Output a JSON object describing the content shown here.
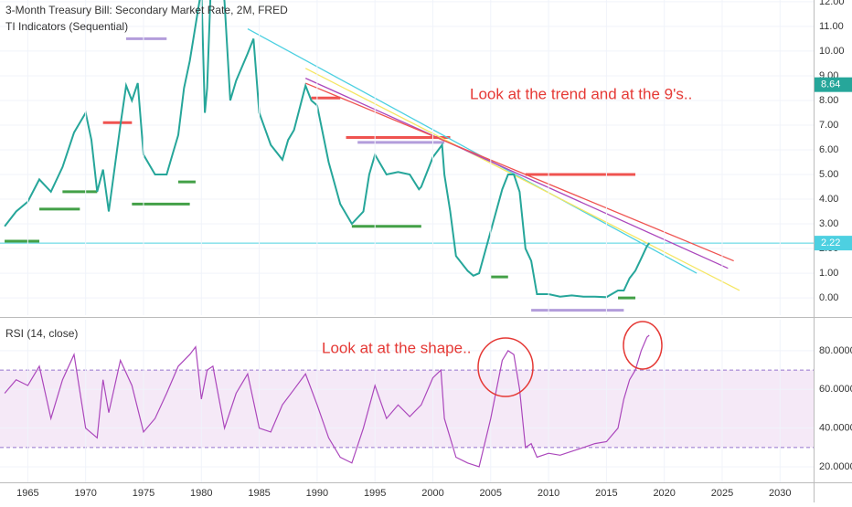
{
  "chart_data": [
    {
      "type": "line",
      "title": "3-Month Treasury Bill: Secondary Market Rate, 2M, FRED",
      "subtitle": "TI Indicators (Sequential)",
      "annotation": "Look at the trend and at the 9's..",
      "color": "#26a69a",
      "x": [
        1963,
        1964,
        1965,
        1966,
        1967,
        1968,
        1969,
        1970,
        1970.5,
        1971,
        1971.5,
        1972,
        1973,
        1973.5,
        1974,
        1974.5,
        1975,
        1976,
        1977,
        1977.5,
        1978,
        1978.5,
        1979,
        1980,
        1980.3,
        1980.5,
        1981,
        1981.5,
        1982,
        1982.5,
        1983,
        1984,
        1984.5,
        1985,
        1986,
        1987,
        1987.5,
        1988,
        1989,
        1989.5,
        1990,
        1991,
        1992,
        1993,
        1994,
        1994.5,
        1995,
        1996,
        1997,
        1998,
        1998.8,
        1999,
        2000,
        2000.8,
        2001,
        2001.5,
        2002,
        2003,
        2003.5,
        2004,
        2005,
        2006,
        2006.5,
        2007,
        2007.5,
        2008,
        2008.5,
        2009,
        2010,
        2011,
        2012,
        2013,
        2014,
        2015,
        2016,
        2016.5,
        2017,
        2017.5,
        2018,
        2018.5,
        2018.7
      ],
      "values": [
        2.9,
        3.5,
        3.9,
        4.8,
        4.3,
        5.3,
        6.7,
        7.5,
        6.4,
        4.3,
        5.2,
        3.5,
        7.0,
        8.6,
        8.0,
        8.7,
        5.8,
        5.0,
        5.0,
        5.8,
        6.6,
        8.5,
        9.6,
        12.5,
        7.5,
        8.5,
        15,
        14.5,
        12.0,
        8.0,
        8.8,
        9.9,
        10.5,
        7.5,
        6.2,
        5.6,
        6.4,
        6.8,
        8.6,
        8.0,
        7.8,
        5.5,
        3.8,
        3.0,
        3.5,
        5.0,
        5.8,
        5.0,
        5.1,
        5.0,
        4.4,
        4.5,
        5.7,
        6.2,
        5.0,
        3.5,
        1.7,
        1.1,
        0.9,
        1.0,
        2.7,
        4.4,
        5.0,
        5.0,
        4.3,
        2.0,
        1.5,
        0.15,
        0.15,
        0.05,
        0.1,
        0.05,
        0.05,
        0.03,
        0.3,
        0.3,
        0.8,
        1.1,
        1.6,
        2.1,
        2.22
      ],
      "xlim": [
        1962.6,
        2032.9
      ],
      "ylim": [
        -0.7,
        12.07
      ],
      "yticks": [
        {
          "value": 0,
          "label": "0.00"
        },
        {
          "value": 1,
          "label": "1.00"
        },
        {
          "value": 2,
          "label": "2.00"
        },
        {
          "value": 3,
          "label": "3.00"
        },
        {
          "value": 4,
          "label": "4.00"
        },
        {
          "value": 5,
          "label": "5.00"
        },
        {
          "value": 6,
          "label": "6.00"
        },
        {
          "value": 7,
          "label": "7.00"
        },
        {
          "value": 8,
          "label": "8.00"
        },
        {
          "value": 9,
          "label": "9.00"
        },
        {
          "value": 10,
          "label": "10.00"
        },
        {
          "value": 11,
          "label": "11.00"
        },
        {
          "value": 12,
          "label": "12.00"
        }
      ],
      "grid": true,
      "price_tags": [
        {
          "value": 2.22,
          "color": "#4dd0e1"
        },
        {
          "value": 8.64,
          "color": "#26a69a"
        }
      ],
      "trendlines": [
        {
          "x": [
            1984,
            2022.8
          ],
          "values": [
            10.9,
            1.0
          ],
          "color": "#4dd0e1"
        },
        {
          "x": [
            1989,
            2026.5
          ],
          "values": [
            9.3,
            0.3
          ],
          "color": "#f5e663"
        },
        {
          "x": [
            1989,
            2025.5
          ],
          "values": [
            8.9,
            1.2
          ],
          "color": "#ab47bc"
        },
        {
          "x": [
            1989,
            2026
          ],
          "values": [
            8.7,
            1.5
          ],
          "color": "#ef5350"
        }
      ],
      "levels": [
        {
          "x": [
            1971.5,
            1974
          ],
          "value": 7.1,
          "color": "#ef5350"
        },
        {
          "x": [
            1989.5,
            1992
          ],
          "value": 8.1,
          "color": "#ef5350"
        },
        {
          "x": [
            1992.5,
            2001.5
          ],
          "value": 6.5,
          "color": "#ef5350"
        },
        {
          "x": [
            2008,
            2017.5
          ],
          "value": 5.0,
          "color": "#ef5350"
        },
        {
          "x": [
            1963,
            1966
          ],
          "value": 2.3,
          "color": "#43a047"
        },
        {
          "x": [
            1966,
            1969.5
          ],
          "value": 3.6,
          "color": "#43a047"
        },
        {
          "x": [
            1968,
            1971
          ],
          "value": 4.3,
          "color": "#43a047"
        },
        {
          "x": [
            1974,
            1979
          ],
          "value": 3.8,
          "color": "#43a047"
        },
        {
          "x": [
            1978,
            1979.5
          ],
          "value": 4.7,
          "color": "#43a047"
        },
        {
          "x": [
            1993,
            1999
          ],
          "value": 2.9,
          "color": "#43a047"
        },
        {
          "x": [
            2005,
            2006.5
          ],
          "value": 0.85,
          "color": "#43a047"
        },
        {
          "x": [
            2016,
            2017.5
          ],
          "value": 0.0,
          "color": "#43a047"
        },
        {
          "x": [
            1973.5,
            1977
          ],
          "value": 10.5,
          "color": "#b39ddb"
        },
        {
          "x": [
            1993.5,
            2001
          ],
          "value": 6.3,
          "color": "#b39ddb"
        },
        {
          "x": [
            2008.5,
            2016.5
          ],
          "value": -0.5,
          "color": "#b39ddb"
        }
      ]
    },
    {
      "type": "line",
      "title": "RSI (14, close)",
      "annotation": "Look at at the shape..",
      "color": "#ab47bc",
      "x": [
        1963,
        1964,
        1965,
        1966,
        1967,
        1968,
        1969,
        1970,
        1971,
        1971.5,
        1972,
        1973,
        1974,
        1975,
        1976,
        1977,
        1978,
        1979,
        1979.5,
        1980,
        1980.5,
        1981,
        1982,
        1983,
        1984,
        1985,
        1986,
        1987,
        1988,
        1989,
        1990,
        1991,
        1992,
        1993,
        1994,
        1995,
        1996,
        1997,
        1998,
        1999,
        2000,
        2000.7,
        2001,
        2002,
        2003,
        2004,
        2005,
        2006,
        2006.5,
        2007,
        2007.5,
        2008,
        2008.5,
        2009,
        2010,
        2011,
        2012,
        2013,
        2014,
        2015,
        2016,
        2016.5,
        2017,
        2017.5,
        2018,
        2018.5,
        2018.7
      ],
      "values": [
        58,
        65,
        62,
        72,
        45,
        65,
        78,
        40,
        35,
        65,
        48,
        75,
        62,
        38,
        45,
        58,
        72,
        78,
        82,
        55,
        70,
        72,
        40,
        58,
        68,
        40,
        38,
        52,
        60,
        68,
        52,
        35,
        25,
        22,
        40,
        62,
        45,
        52,
        46,
        52,
        66,
        70,
        45,
        25,
        22,
        20,
        45,
        75,
        80,
        78,
        60,
        30,
        32,
        25,
        27,
        26,
        28,
        30,
        32,
        33,
        40,
        55,
        65,
        70,
        80,
        87,
        88
      ],
      "xlim": [
        1962.6,
        2032.9
      ],
      "ylim": [
        12,
        96
      ],
      "yticks": [
        {
          "value": 20,
          "label": "20.0000"
        },
        {
          "value": 40,
          "label": "40.0000"
        },
        {
          "value": 60,
          "label": "60.0000"
        },
        {
          "value": 80,
          "label": "80.0000"
        }
      ],
      "xticks": [
        1965,
        1970,
        1975,
        1980,
        1985,
        1990,
        1995,
        2000,
        2005,
        2010,
        2015,
        2020,
        2025,
        2030
      ],
      "band": [
        30,
        70
      ],
      "grid": true
    }
  ]
}
